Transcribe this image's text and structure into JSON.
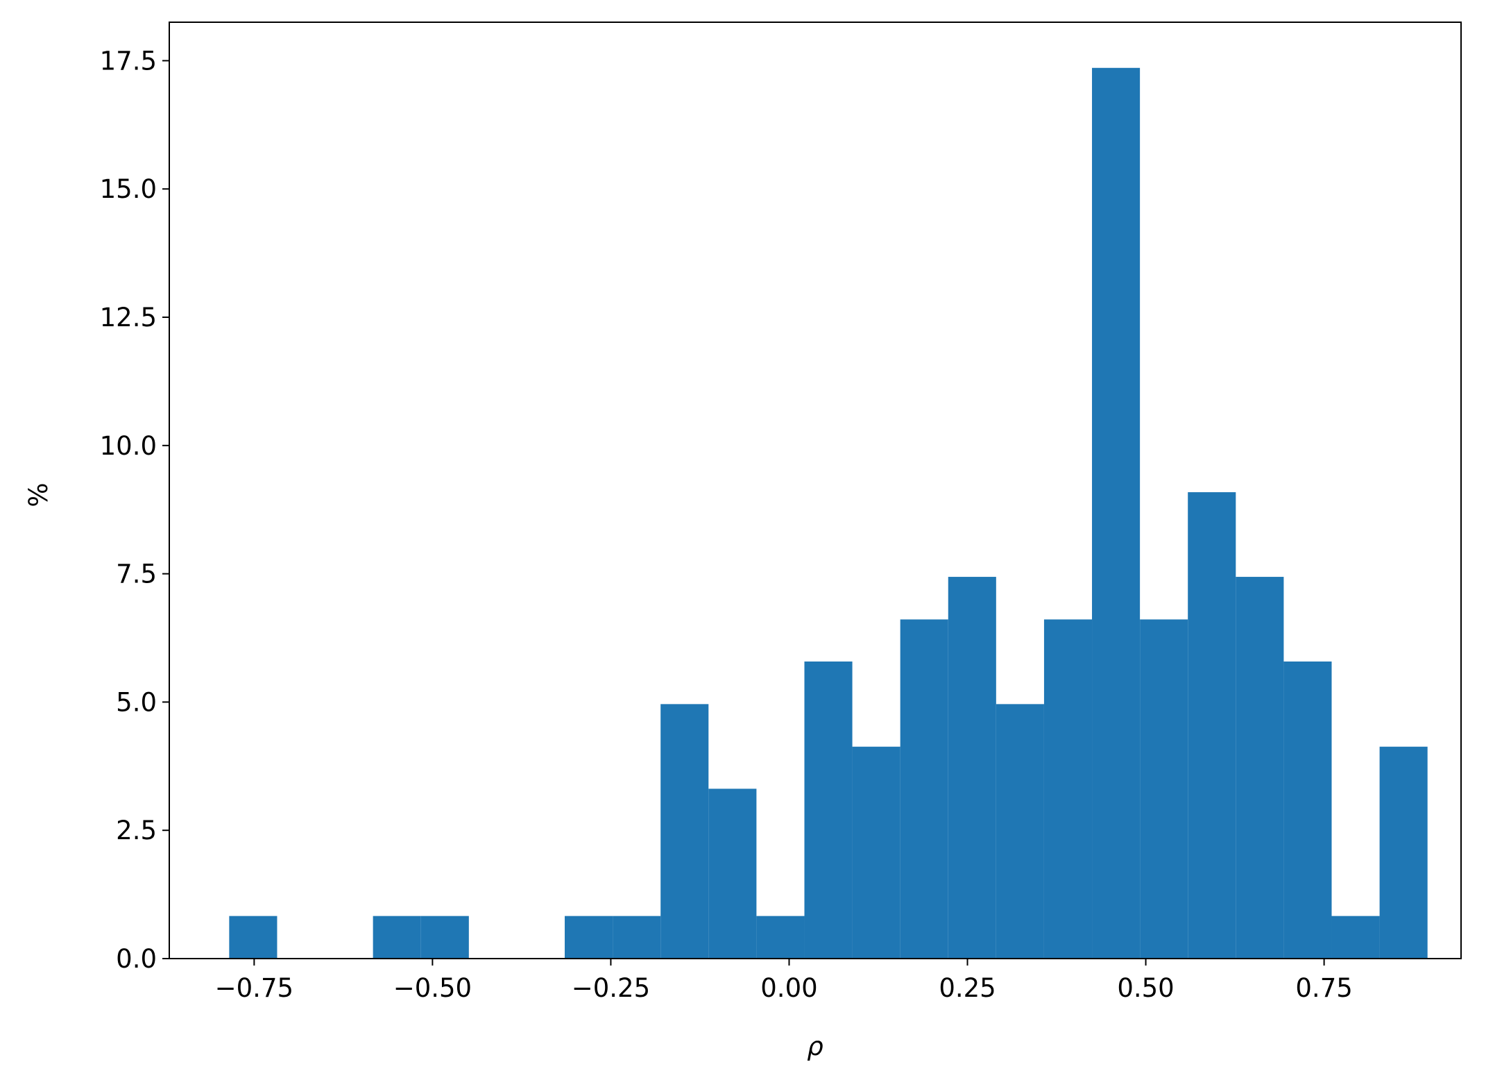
{
  "chart_data": {
    "type": "histogram",
    "x_label": "ρ",
    "y_label": "%",
    "bins": [
      -0.785,
      -0.7178,
      -0.6506,
      -0.5834,
      -0.5162,
      -0.449,
      -0.3818,
      -0.3146,
      -0.2474,
      -0.1802,
      -0.113,
      -0.0458,
      0.0214,
      0.0886,
      0.1558,
      0.223,
      0.2902,
      0.3574,
      0.4246,
      0.4918,
      0.559,
      0.6262,
      0.6934,
      0.7606,
      0.8278,
      0.895
    ],
    "values": [
      0.83,
      0,
      0,
      0.83,
      0.83,
      0,
      0,
      0.83,
      0.83,
      4.96,
      3.31,
      0.83,
      5.79,
      4.13,
      6.61,
      7.44,
      4.96,
      6.61,
      17.36,
      6.61,
      9.09,
      7.44,
      5.79,
      0.83,
      4.13
    ],
    "color": "#1f77b4",
    "xlim": [
      -0.869,
      0.942
    ],
    "ylim": [
      0,
      18.25
    ],
    "xticks": [
      {
        "value": -0.75,
        "label": "−0.75"
      },
      {
        "value": -0.5,
        "label": "−0.50"
      },
      {
        "value": -0.25,
        "label": "−0.25"
      },
      {
        "value": 0,
        "label": "0.00"
      },
      {
        "value": 0.25,
        "label": "0.25"
      },
      {
        "value": 0.5,
        "label": "0.50"
      },
      {
        "value": 0.75,
        "label": "0.75"
      }
    ],
    "yticks": [
      {
        "value": 0,
        "label": "0.0"
      },
      {
        "value": 2.5,
        "label": "2.5"
      },
      {
        "value": 5,
        "label": "5.0"
      },
      {
        "value": 7.5,
        "label": "7.5"
      },
      {
        "value": 10,
        "label": "10.0"
      },
      {
        "value": 12.5,
        "label": "12.5"
      },
      {
        "value": 15,
        "label": "15.0"
      },
      {
        "value": 17.5,
        "label": "17.5"
      }
    ]
  }
}
